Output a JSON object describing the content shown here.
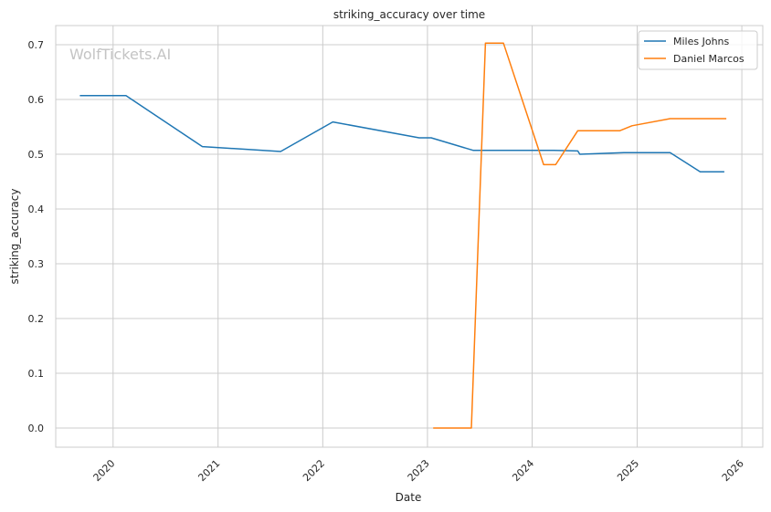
{
  "chart_data": {
    "type": "line",
    "title": "striking_accuracy over time",
    "xlabel": "Date",
    "ylabel": "striking_accuracy",
    "watermark": "WolfTickets.AI",
    "x_ticks": [
      "2020",
      "2021",
      "2022",
      "2023",
      "2024",
      "2025",
      "2026"
    ],
    "y_ticks": [
      "0.0",
      "0.1",
      "0.2",
      "0.3",
      "0.4",
      "0.5",
      "0.6",
      "0.7"
    ],
    "xlim": [
      "2019-06-15",
      "2026-03-15"
    ],
    "ylim": [
      -0.035,
      0.735
    ],
    "grid": true,
    "legend_position": "top-right",
    "series": [
      {
        "name": "Miles Johns",
        "color": "#1f77b4",
        "points": [
          [
            "2019-09-07",
            0.607
          ],
          [
            "2020-02-15",
            0.607
          ],
          [
            "2020-11-07",
            0.514
          ],
          [
            "2021-08-07",
            0.505
          ],
          [
            "2022-02-05",
            0.559
          ],
          [
            "2022-12-03",
            0.53
          ],
          [
            "2023-01-14",
            0.53
          ],
          [
            "2023-06-10",
            0.507
          ],
          [
            "2024-03-16",
            0.507
          ],
          [
            "2024-06-08",
            0.506
          ],
          [
            "2024-06-15",
            0.5
          ],
          [
            "2024-11-16",
            0.503
          ],
          [
            "2025-04-26",
            0.503
          ],
          [
            "2025-08-09",
            0.468
          ],
          [
            "2025-11-01",
            0.468
          ]
        ]
      },
      {
        "name": "Daniel Marcos",
        "color": "#ff7f0e",
        "points": [
          [
            "2023-01-21",
            0.0
          ],
          [
            "2023-06-03",
            0.0
          ],
          [
            "2023-07-22",
            0.703
          ],
          [
            "2023-09-23",
            0.703
          ],
          [
            "2024-02-10",
            0.481
          ],
          [
            "2024-03-23",
            0.481
          ],
          [
            "2024-06-08",
            0.543
          ],
          [
            "2024-11-02",
            0.543
          ],
          [
            "2024-12-14",
            0.552
          ],
          [
            "2025-04-26",
            0.565
          ],
          [
            "2025-11-08",
            0.565
          ]
        ]
      }
    ]
  }
}
